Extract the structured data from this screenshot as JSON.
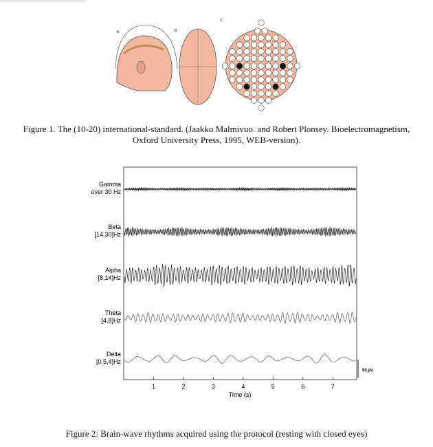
{
  "figure1": {
    "panel_labels": [
      "A",
      "B",
      "C"
    ],
    "caption": "Figure 1. The (10-20) international-standard. (Jaakko Malmivuo. and Robert Plonsey. Bioelectromagnetism, Oxford University Press, 1995, WEB-version)."
  },
  "figure2": {
    "bands": [
      {
        "name": "Gamma",
        "range": "over 30 Hz"
      },
      {
        "name": "Beta",
        "range": "[14,30]Hz"
      },
      {
        "name": "Alpha",
        "range": "[8,14]Hz"
      },
      {
        "name": "Theta",
        "range": "[4,8]Hz"
      },
      {
        "name": "Delta",
        "range": "[0.5,4]Hz"
      }
    ],
    "xlabel": "Time (s)",
    "xlim": [
      0,
      7.8
    ],
    "xticks": [
      1,
      2,
      3,
      4,
      5,
      6,
      7
    ],
    "scale_bar": "50 µV",
    "caption": "Figure 2: Brain-wave rhythms acquired using the protocol (resting with closed eyes)"
  }
}
